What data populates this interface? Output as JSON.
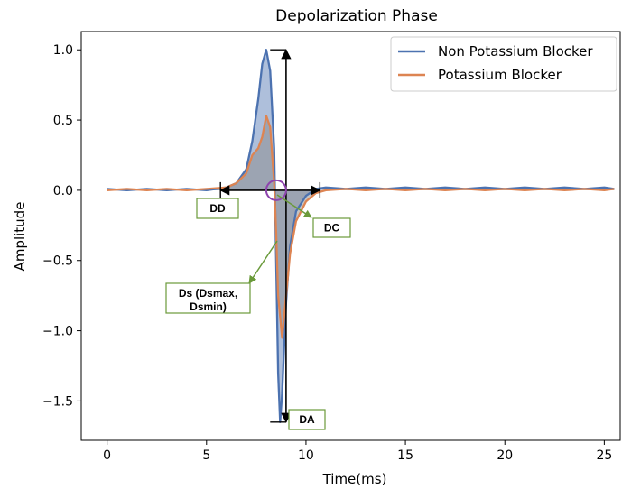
{
  "chart_data": {
    "type": "line",
    "title": "Depolarization Phase",
    "xlabel": "Time(ms)",
    "ylabel": "Amplitude",
    "xlim": [
      -1.3,
      25.8
    ],
    "ylim": [
      -1.78,
      1.13
    ],
    "xticks": [
      0,
      5,
      10,
      15,
      20,
      25
    ],
    "xtick_labels": [
      "0",
      "5",
      "10",
      "15",
      "20",
      "25"
    ],
    "yticks": [
      1.0,
      0.5,
      0.0,
      -0.5,
      -1.0,
      -1.5
    ],
    "ytick_labels": [
      "1.0",
      "0.5",
      "0.0",
      "−0.5",
      "−1.0",
      "−1.5"
    ],
    "grid": false,
    "legend_position": "top-right",
    "series": [
      {
        "name": "Non Potassium Blocker",
        "color": "#4c72b0",
        "x": [
          0,
          1,
          2,
          3,
          4,
          5,
          6,
          6.5,
          7,
          7.3,
          7.6,
          7.8,
          8.0,
          8.2,
          8.4,
          8.5,
          8.6,
          8.7,
          8.8,
          9.0,
          9.2,
          9.5,
          10,
          10.5,
          11,
          12,
          13,
          14,
          15,
          16,
          17,
          18,
          19,
          20,
          21,
          22,
          23,
          24,
          25,
          25.5
        ],
        "y": [
          0.01,
          0.0,
          0.01,
          0.0,
          0.01,
          0.0,
          0.02,
          0.05,
          0.15,
          0.35,
          0.65,
          0.9,
          1.0,
          0.85,
          0.3,
          -0.5,
          -1.3,
          -1.65,
          -1.45,
          -0.8,
          -0.4,
          -0.15,
          -0.04,
          0.01,
          0.02,
          0.01,
          0.02,
          0.01,
          0.02,
          0.01,
          0.02,
          0.01,
          0.02,
          0.01,
          0.02,
          0.01,
          0.02,
          0.01,
          0.02,
          0.01
        ]
      },
      {
        "name": "Potassium Blocker",
        "color": "#dd8452",
        "x": [
          0,
          1,
          2,
          3,
          4,
          5,
          6,
          6.5,
          7,
          7.3,
          7.6,
          7.8,
          8.0,
          8.2,
          8.4,
          8.5,
          8.6,
          8.8,
          9.0,
          9.2,
          9.5,
          10,
          10.5,
          11,
          12,
          13,
          14,
          15,
          16,
          17,
          18,
          19,
          20,
          21,
          22,
          23,
          24,
          25,
          25.5
        ],
        "y": [
          0.0,
          0.01,
          0.0,
          0.01,
          0.0,
          0.01,
          0.02,
          0.05,
          0.12,
          0.25,
          0.3,
          0.38,
          0.53,
          0.45,
          0.05,
          -0.3,
          -0.75,
          -1.05,
          -0.75,
          -0.45,
          -0.22,
          -0.08,
          -0.02,
          0.0,
          0.01,
          0.0,
          0.01,
          0.0,
          0.01,
          0.0,
          0.01,
          0.0,
          0.01,
          0.0,
          0.01,
          0.0,
          0.01,
          0.0,
          0.01
        ]
      }
    ],
    "annotations": [
      {
        "id": "DD",
        "text": "DD"
      },
      {
        "id": "DC",
        "text": "DC"
      },
      {
        "id": "DS",
        "line1": "Ds (Dsmax,",
        "line2": "Dsmin)"
      },
      {
        "id": "DA",
        "text": "DA"
      }
    ],
    "annotation_colors": {
      "box_border": "#6a9a3a",
      "circle": "#8e44ad",
      "arrow": "#000000"
    }
  }
}
